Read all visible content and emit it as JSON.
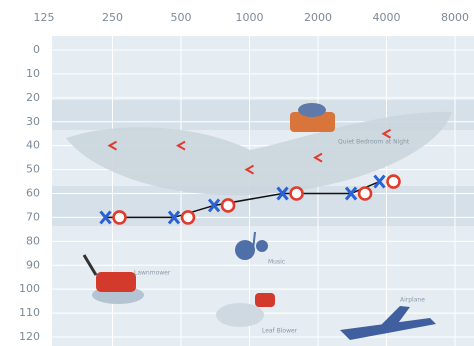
{
  "chart_data": {
    "type": "audiogram",
    "x_log": true,
    "y_inverted": true,
    "xlim": [
      125,
      8000
    ],
    "xticks": [
      125,
      250,
      500,
      1000,
      2000,
      4000,
      8000
    ],
    "ylim": [
      0,
      120
    ],
    "yticks": [
      0,
      10,
      20,
      30,
      40,
      50,
      60,
      70,
      80,
      90,
      100,
      110,
      120
    ],
    "grid": true,
    "line_color": "#111111",
    "x": [
      250,
      500,
      750,
      1500,
      3000,
      4000
    ],
    "series": [
      {
        "marker": "X",
        "color": "#2a62d6",
        "values": [
          70,
          70,
          65,
          60,
          60,
          55
        ]
      },
      {
        "marker": "O",
        "color": "#e23b2e",
        "values": [
          70,
          70,
          65,
          60,
          60,
          55
        ]
      }
    ],
    "bone": {
      "marker": "<",
      "color": "#e23b2e",
      "x": [
        250,
        500,
        1000,
        2000,
        4000
      ],
      "values": [
        40,
        40,
        50,
        45,
        35
      ]
    },
    "annotations": [
      "Quiet Bedroom at Night",
      "Lawnmower",
      "Music",
      "Leaf Blower",
      "Airplane"
    ]
  }
}
